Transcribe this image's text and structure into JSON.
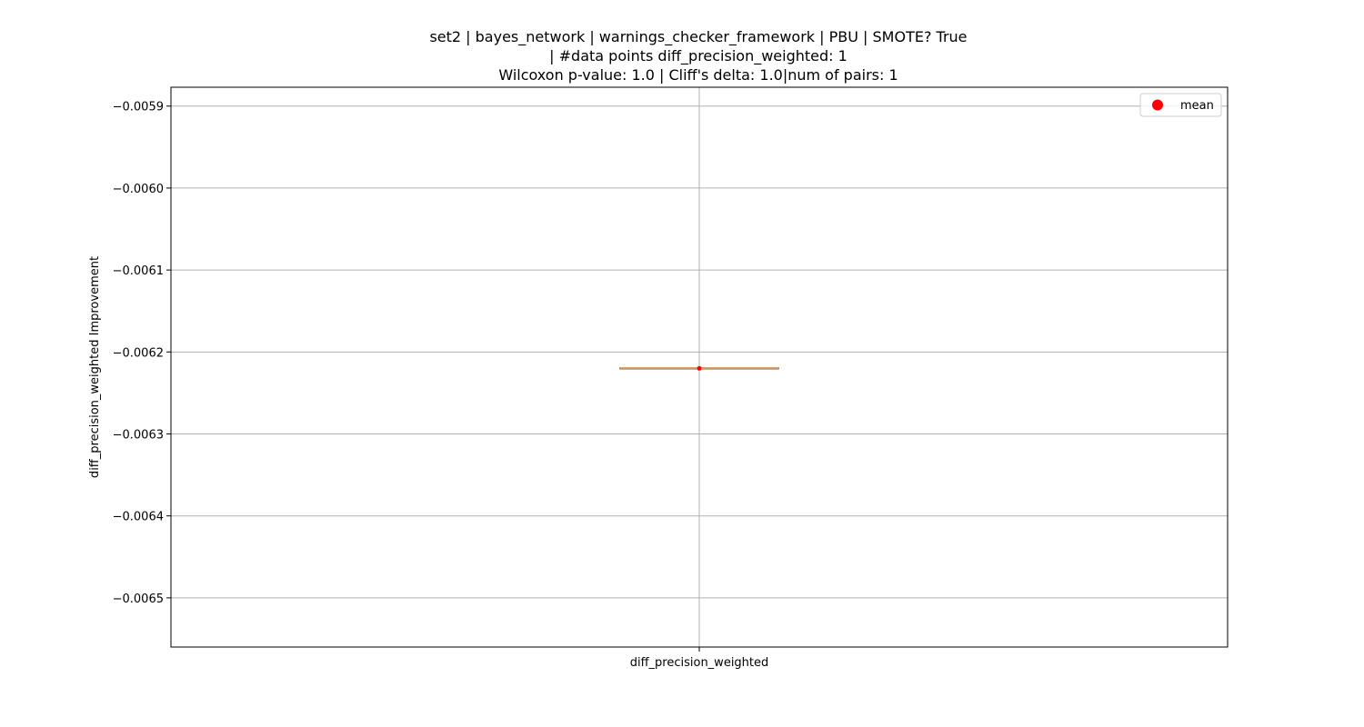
{
  "chart_data": {
    "type": "box",
    "title_lines": [
      "set2 | bayes_network | warnings_checker_framework | PBU | SMOTE? True",
      "| #data points diff_precision_weighted: 1",
      "Wilcoxon p-value: 1.0 | Cliff's delta: 1.0|num of pairs: 1"
    ],
    "xlabel": "",
    "ylabel": "diff_precision_weighted Improvement",
    "categories": [
      "diff_precision_weighted"
    ],
    "ylim": [
      -0.00656,
      -0.005877
    ],
    "yticks": [
      -0.0059,
      -0.006,
      -0.0061,
      -0.0062,
      -0.0063,
      -0.0064,
      -0.0065
    ],
    "ytick_labels": [
      "−0.0059",
      "−0.0060",
      "−0.0061",
      "−0.0062",
      "−0.0063",
      "−0.0064",
      "−0.0065"
    ],
    "series": [
      {
        "category": "diff_precision_weighted",
        "min": -0.00622,
        "q1": -0.00622,
        "median": -0.00622,
        "q3": -0.00622,
        "max": -0.00622,
        "mean": -0.00622
      }
    ],
    "legend": {
      "entries": [
        "mean"
      ],
      "placement": "top-right"
    },
    "grid": true,
    "colors": {
      "median": "#e8923a",
      "mean": "#ff0000",
      "box": "#000000",
      "grid": "#b0b0b0"
    }
  }
}
